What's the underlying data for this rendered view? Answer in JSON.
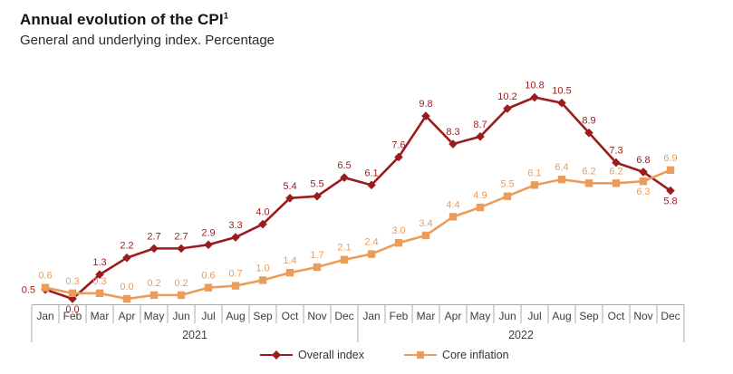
{
  "header": {
    "title": "Annual evolution of the CPI",
    "title_superscript": "1",
    "subtitle": "General and underlying index. Percentage"
  },
  "chart_data": {
    "type": "line",
    "categories": [
      "Jan",
      "Feb",
      "Mar",
      "Apr",
      "May",
      "Jun",
      "Jul",
      "Aug",
      "Sep",
      "Oct",
      "Nov",
      "Dec",
      "Jan",
      "Feb",
      "Mar",
      "Apr",
      "May",
      "Jun",
      "Jul",
      "Aug",
      "Sep",
      "Oct",
      "Nov",
      "Dec"
    ],
    "year_groups": [
      {
        "label": "2021",
        "months": 12
      },
      {
        "label": "2022",
        "months": 12
      }
    ],
    "ylim": [
      0,
      11.5
    ],
    "grid": false,
    "y_axis_visible": false,
    "legend_position": "bottom-center",
    "series": [
      {
        "name": "Overall index",
        "color": "#9A1C1C",
        "marker": "diamond",
        "values": [
          0.5,
          0.0,
          1.3,
          2.2,
          2.7,
          2.7,
          2.9,
          3.3,
          4.0,
          5.4,
          5.5,
          6.5,
          6.1,
          7.6,
          9.8,
          8.3,
          8.7,
          10.2,
          10.8,
          10.5,
          8.9,
          7.3,
          6.8,
          5.8
        ],
        "label_pos": [
          "left",
          "below",
          "above",
          "above",
          "above",
          "above",
          "above",
          "above",
          "above",
          "above",
          "above",
          "above",
          "above",
          "above",
          "above",
          "above",
          "above",
          "above",
          "above",
          "above",
          "above",
          "above",
          "above",
          "below"
        ]
      },
      {
        "name": "Core inflation",
        "color": "#EC9C59",
        "marker": "square",
        "values": [
          0.6,
          0.3,
          0.3,
          0.0,
          0.2,
          0.2,
          0.6,
          0.7,
          1.0,
          1.4,
          1.7,
          2.1,
          2.4,
          3.0,
          3.4,
          4.4,
          4.9,
          5.5,
          6.1,
          6.4,
          6.2,
          6.2,
          6.3,
          6.9
        ],
        "label_pos": [
          "above",
          "above",
          "above",
          "above",
          "above",
          "above",
          "above",
          "above",
          "above",
          "above",
          "above",
          "above",
          "above",
          "above",
          "above",
          "above",
          "above",
          "above",
          "above",
          "above",
          "above",
          "above",
          "below",
          "above"
        ]
      }
    ]
  }
}
